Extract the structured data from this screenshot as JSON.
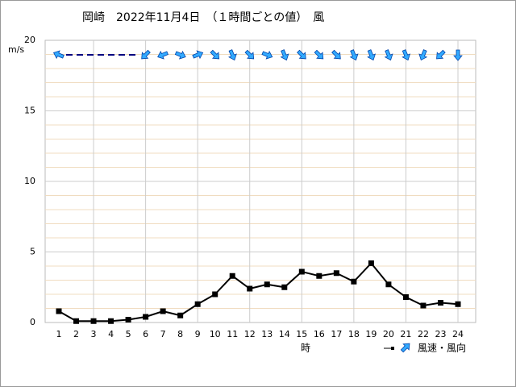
{
  "chart_data": {
    "type": "line",
    "title": "岡崎　2022年11月4日　（１時間ごとの値）　風",
    "y_label": "m/s",
    "x_label": "時",
    "categories": [
      "1",
      "2",
      "3",
      "4",
      "5",
      "6",
      "7",
      "8",
      "9",
      "10",
      "11",
      "12",
      "13",
      "14",
      "15",
      "16",
      "17",
      "18",
      "19",
      "20",
      "21",
      "22",
      "23",
      "24"
    ],
    "series": [
      {
        "name": "風速・風向",
        "color": "#000000",
        "arrow_color": "#33aaff",
        "values": [
          0.8,
          0.1,
          0.1,
          0.1,
          0.2,
          0.4,
          0.8,
          0.5,
          1.3,
          2.0,
          3.3,
          2.4,
          2.7,
          2.5,
          3.6,
          3.3,
          3.5,
          2.9,
          4.2,
          2.7,
          1.8,
          1.2,
          1.4,
          1.3
        ],
        "directions": [
          112.5,
          null,
          null,
          null,
          null,
          45,
          67.5,
          292.5,
          247.5,
          315,
          337.5,
          315,
          292.5,
          337.5,
          315,
          315,
          315,
          337.5,
          337.5,
          337.5,
          337.5,
          22.5,
          45,
          0
        ]
      }
    ],
    "ylim": [
      0,
      20
    ],
    "yticks": [
      0,
      5,
      10,
      15,
      20
    ],
    "grid": true
  }
}
